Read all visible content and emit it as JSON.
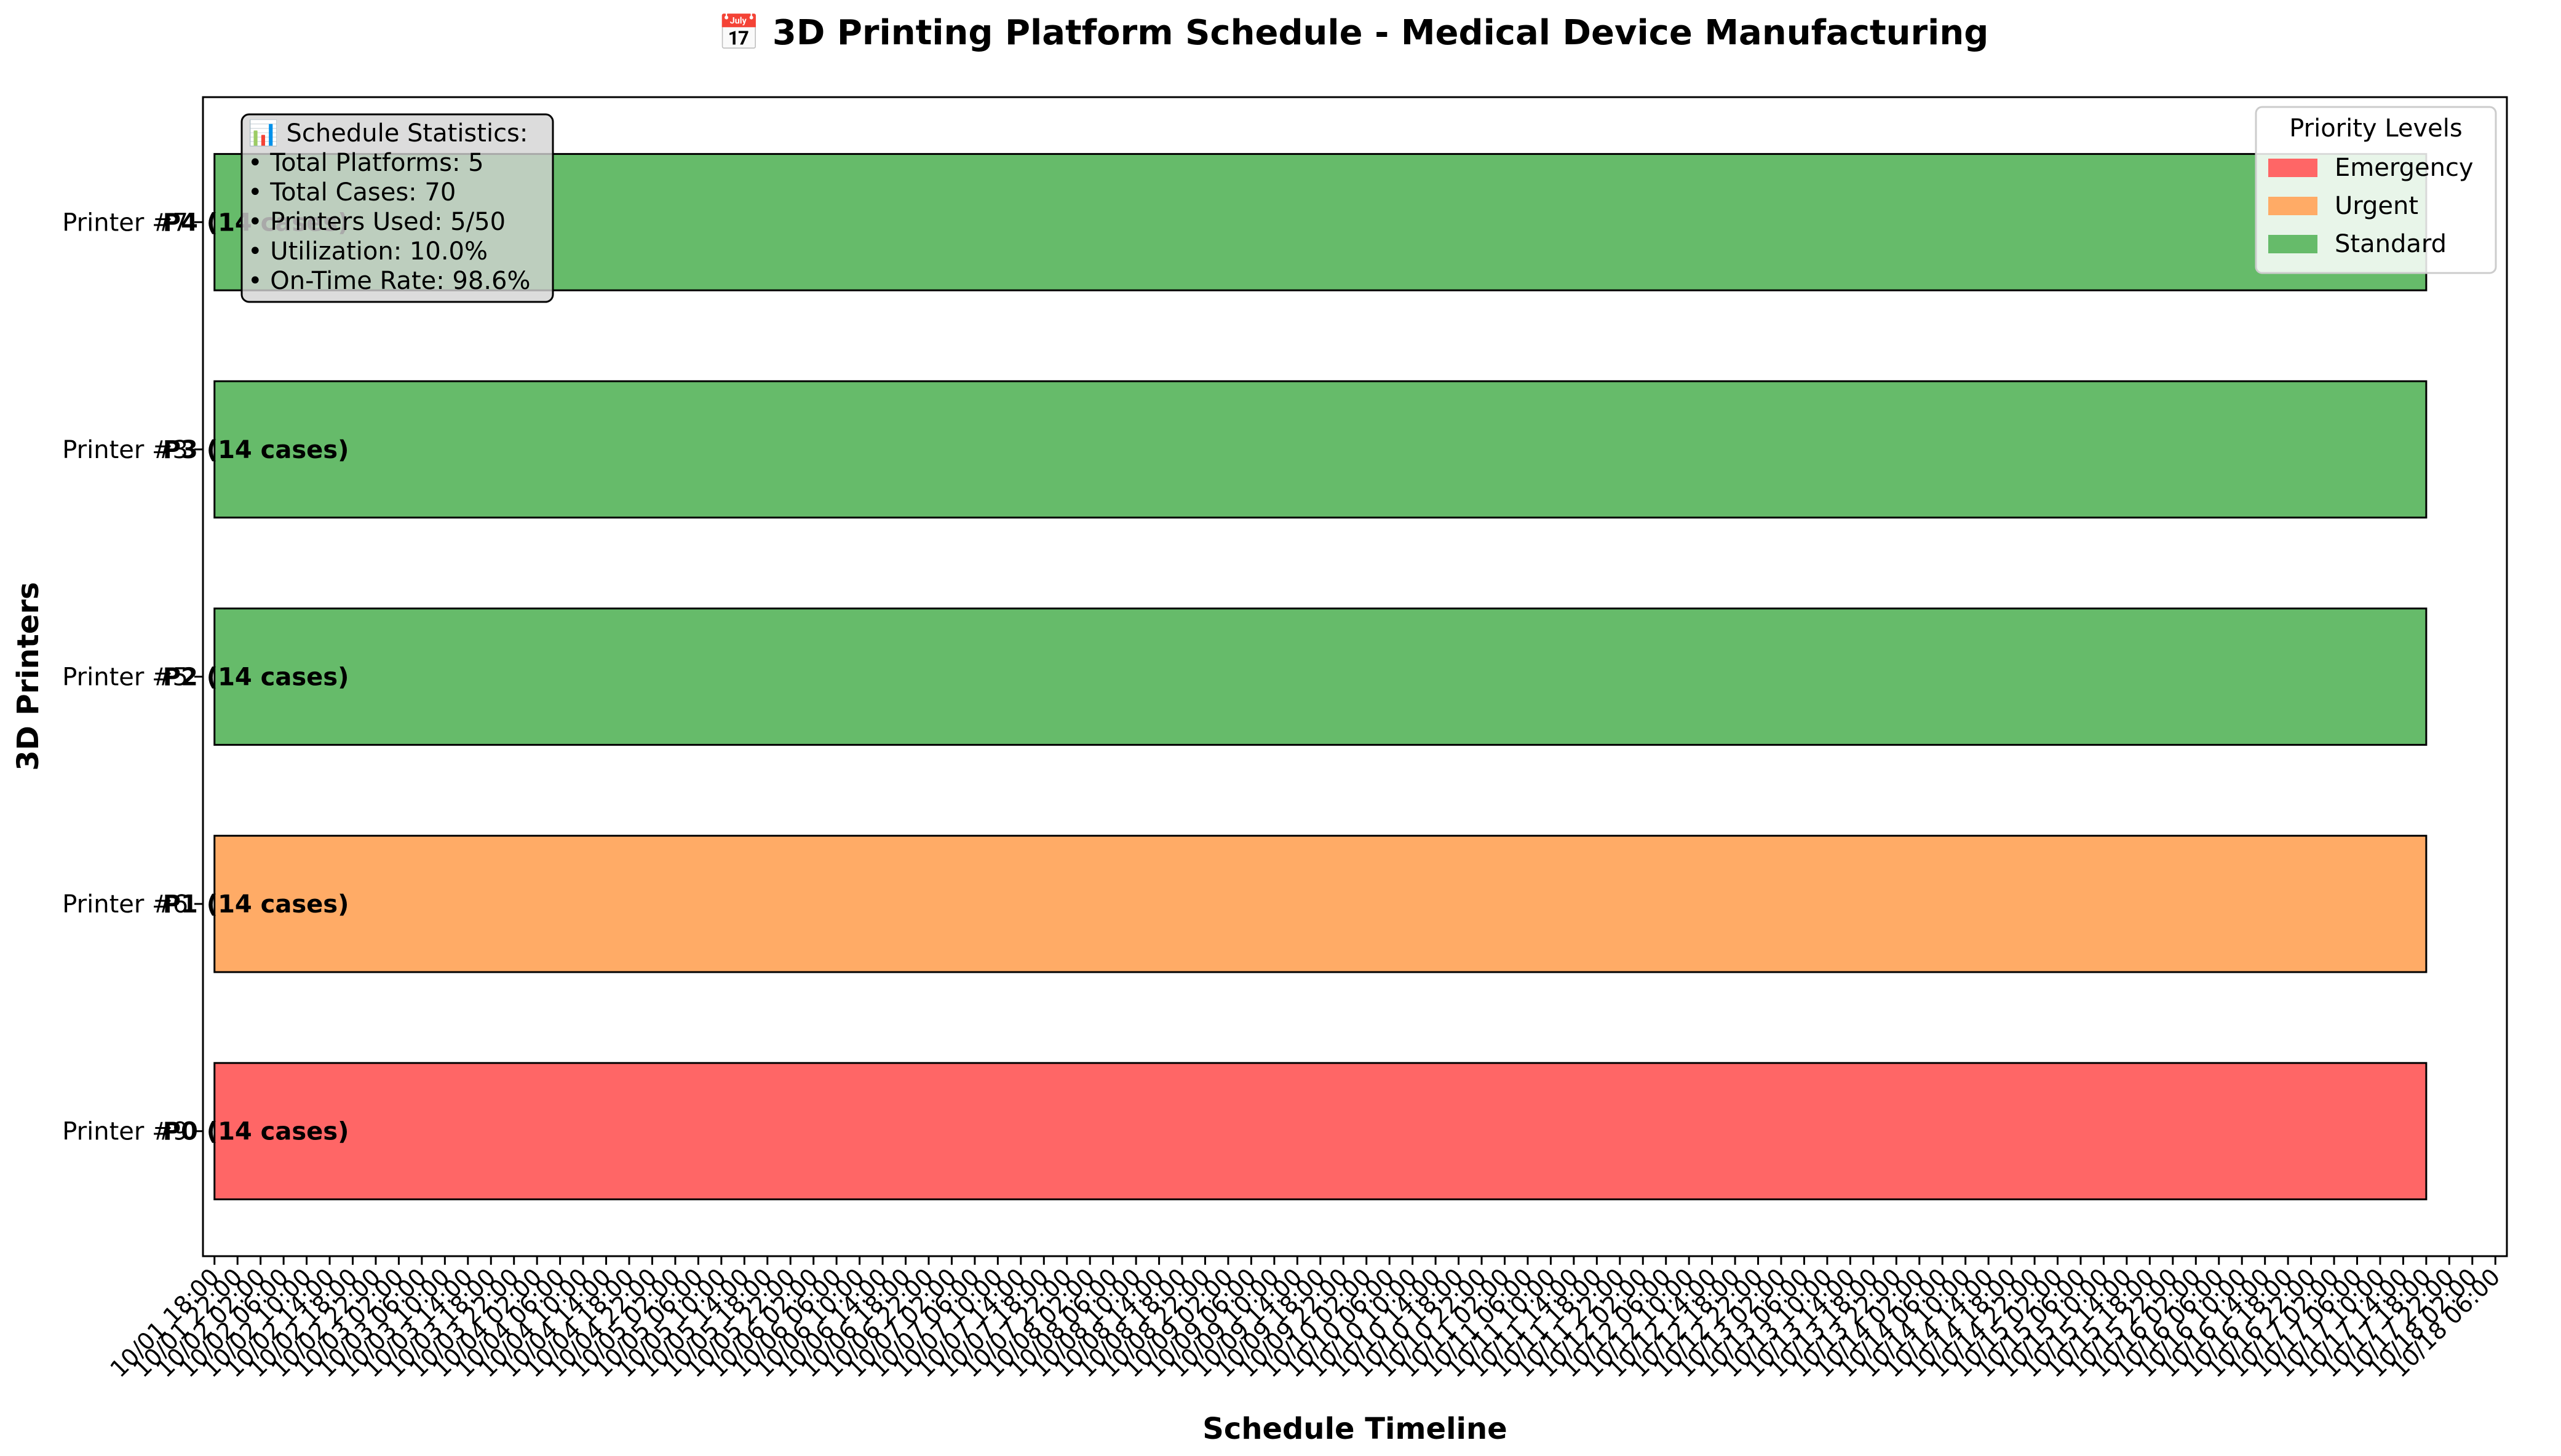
{
  "chart_data": {
    "type": "bar",
    "orientation": "horizontal",
    "title": "📅 3D Printing Platform Schedule - Medical Device Manufacturing",
    "xlabel": "Schedule Timeline",
    "ylabel": "3D Printers",
    "y_categories": [
      "Printer #9",
      "Printer #6",
      "Printer #5",
      "Printer #3",
      "Printer #7"
    ],
    "bars": [
      {
        "printer": "Printer #9",
        "label": "P0 (14 cases)",
        "priority": "Emergency",
        "start": "10/01 18:00",
        "end": "10/17 18:00"
      },
      {
        "printer": "Printer #6",
        "label": "P1 (14 cases)",
        "priority": "Urgent",
        "start": "10/01 18:00",
        "end": "10/17 18:00"
      },
      {
        "printer": "Printer #5",
        "label": "P2 (14 cases)",
        "priority": "Standard",
        "start": "10/01 18:00",
        "end": "10/17 18:00"
      },
      {
        "printer": "Printer #3",
        "label": "P3 (14 cases)",
        "priority": "Standard",
        "start": "10/01 18:00",
        "end": "10/17 18:00"
      },
      {
        "printer": "Printer #7",
        "label": "P4 (14 cases)",
        "priority": "Standard",
        "start": "10/01 18:00",
        "end": "10/17 18:00"
      }
    ],
    "xlim": [
      "10/01 16:00",
      "10/18 08:00"
    ],
    "xtick_labels": [
      "10/01 18:00",
      "10/01 22:00",
      "10/02 02:00",
      "10/02 06:00",
      "10/02 10:00",
      "10/02 14:00",
      "10/02 18:00",
      "10/02 22:00",
      "10/03 02:00",
      "10/03 06:00",
      "10/03 10:00",
      "10/03 14:00",
      "10/03 18:00",
      "10/03 22:00",
      "10/04 02:00",
      "10/04 06:00",
      "10/04 10:00",
      "10/04 14:00",
      "10/04 18:00",
      "10/04 22:00",
      "10/05 02:00",
      "10/05 06:00",
      "10/05 10:00",
      "10/05 14:00",
      "10/05 18:00",
      "10/05 22:00",
      "10/06 02:00",
      "10/06 06:00",
      "10/06 10:00",
      "10/06 14:00",
      "10/06 18:00",
      "10/06 22:00",
      "10/07 02:00",
      "10/07 06:00",
      "10/07 10:00",
      "10/07 14:00",
      "10/07 18:00",
      "10/07 22:00",
      "10/08 02:00",
      "10/08 06:00",
      "10/08 10:00",
      "10/08 14:00",
      "10/08 18:00",
      "10/08 22:00",
      "10/09 02:00",
      "10/09 06:00",
      "10/09 10:00",
      "10/09 14:00",
      "10/09 18:00",
      "10/09 22:00",
      "10/10 02:00",
      "10/10 06:00",
      "10/10 10:00",
      "10/10 14:00",
      "10/10 18:00",
      "10/10 22:00",
      "10/11 02:00",
      "10/11 06:00",
      "10/11 10:00",
      "10/11 14:00",
      "10/11 18:00",
      "10/11 22:00",
      "10/12 02:00",
      "10/12 06:00",
      "10/12 10:00",
      "10/12 14:00",
      "10/12 18:00",
      "10/12 22:00",
      "10/13 02:00",
      "10/13 06:00",
      "10/13 10:00",
      "10/13 14:00",
      "10/13 18:00",
      "10/13 22:00",
      "10/14 02:00",
      "10/14 06:00",
      "10/14 10:00",
      "10/14 14:00",
      "10/14 18:00",
      "10/14 22:00",
      "10/15 02:00",
      "10/15 06:00",
      "10/15 10:00",
      "10/15 14:00",
      "10/15 18:00",
      "10/15 22:00",
      "10/16 02:00",
      "10/16 06:00",
      "10/16 10:00",
      "10/16 14:00",
      "10/16 18:00",
      "10/16 22:00",
      "10/17 02:00",
      "10/17 06:00",
      "10/17 10:00",
      "10/17 14:00",
      "10/17 18:00",
      "10/17 22:00",
      "10/18 02:00",
      "10/18 06:00"
    ],
    "legend": {
      "title": "Priority Levels",
      "placement": "top-right",
      "entries": [
        {
          "name": "Emergency",
          "color": "#ff6666"
        },
        {
          "name": "Urgent",
          "color": "#ffab66"
        },
        {
          "name": "Standard",
          "color": "#66bb6a"
        }
      ]
    },
    "stats_box": [
      "📊 Schedule Statistics:",
      "• Total Platforms: 5",
      "• Total Cases: 70",
      "• Printers Used: 5/50",
      "• Utilization: 10.0%",
      "• On-Time Rate: 98.6%"
    ],
    "grid": false
  }
}
